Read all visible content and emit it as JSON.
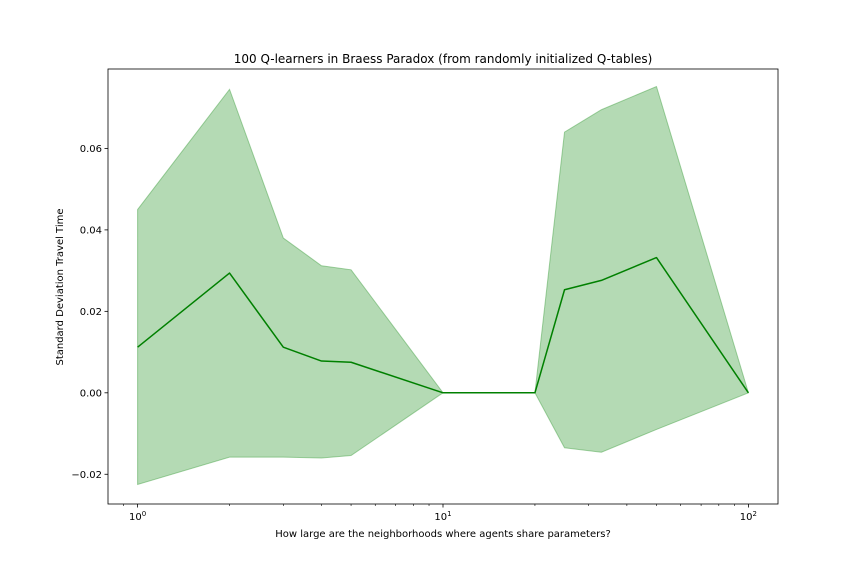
{
  "chart_data": {
    "type": "line",
    "title": "100 Q-learners in Braess Paradox (from randomly initialized Q-tables)",
    "xlabel": "How large are the neighborhoods where agents share parameters?",
    "ylabel": "Standard Deviation Travel Time",
    "xscale": "log",
    "xlim": [
      0.8,
      125
    ],
    "ylim": [
      -0.0273,
      0.0795
    ],
    "grid": false,
    "x_ticks": [
      {
        "value": 1,
        "base": "10",
        "exp": "0"
      },
      {
        "value": 10,
        "base": "10",
        "exp": "1"
      },
      {
        "value": 100,
        "base": "10",
        "exp": "2"
      }
    ],
    "y_ticks": [
      {
        "value": -0.02,
        "label": "−0.02"
      },
      {
        "value": 0.0,
        "label": "0.00"
      },
      {
        "value": 0.02,
        "label": "0.02"
      },
      {
        "value": 0.04,
        "label": "0.04"
      },
      {
        "value": 0.06,
        "label": "0.06"
      }
    ],
    "series": [
      {
        "color": "#008000",
        "band_color": "#4ca64c",
        "x": [
          1,
          2,
          3,
          4,
          5,
          10,
          20,
          25,
          33,
          50,
          100
        ],
        "mean": [
          0.0112,
          0.0294,
          0.0112,
          0.0078,
          0.0075,
          0.0,
          0.0,
          0.0253,
          0.0276,
          0.0332,
          0.0
        ],
        "upper": [
          0.045,
          0.0745,
          0.038,
          0.0312,
          0.0302,
          0.0,
          0.0,
          0.064,
          0.0695,
          0.0752,
          0.0
        ],
        "lower": [
          -0.0225,
          -0.0158,
          -0.0158,
          -0.016,
          -0.0154,
          0.0,
          0.0,
          -0.0135,
          -0.0146,
          -0.009,
          0.0
        ]
      }
    ]
  }
}
